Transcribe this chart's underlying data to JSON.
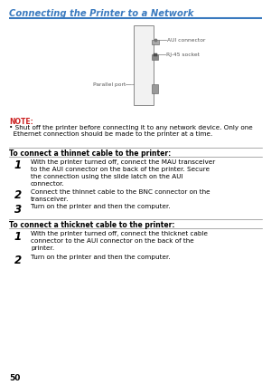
{
  "page_num": "50",
  "header_title": "Connecting the Printer to a Network",
  "header_color": "#3a7abf",
  "note_label": "NOTE:",
  "note_label_color": "#cc2222",
  "note_text_line1": "• Shut off the printer before connecting it to any network device. Only one",
  "note_text_line2": "  Ethernet connection should be made to the printer at a time.",
  "section1_title": "To connect a thinnet cable to the printer:",
  "section2_title": "To connect a thicknet cable to the printer:",
  "thinnet_steps": [
    "With the printer turned off, connect the MAU transceiver\nto the AUI connector on the back of the printer. Secure\nthe connection using the slide latch on the AUI\nconnector.",
    "Connect the thinnet cable to the BNC connector on the\ntransceiver.",
    "Turn on the printer and then the computer."
  ],
  "thicknet_steps": [
    "With the printer turned off, connect the thicknet cable\nconnector to the AUI connector on the back of the\nprinter.",
    "Turn on the printer and then the computer."
  ],
  "bg_color": "#ffffff",
  "text_color": "#000000",
  "diagram_label_color": "#555555",
  "diagram_line_color": "#777777",
  "diagram_border_color": "#888888",
  "body_font_size": 5.2,
  "step_num_font_size": 8.5,
  "section_title_font_size": 5.5,
  "note_font_size": 5.2,
  "header_font_size": 7.2
}
